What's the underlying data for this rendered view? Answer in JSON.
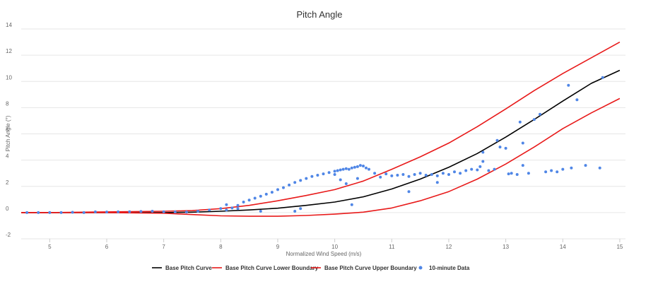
{
  "colors": {
    "base": "#000000",
    "boundary": "#e81a1a",
    "points": "#4f86e6",
    "grid": "#e6e6e6"
  },
  "chart_data": {
    "type": "line",
    "title": "Pitch Angle",
    "xlabel": "Normalized Wind Speed (m/s)",
    "ylabel": "Pitch Angle (°)",
    "xlim": [
      4.5,
      15.1
    ],
    "ylim": [
      -2,
      14
    ],
    "x_ticks": [
      5,
      6,
      7,
      8,
      9,
      10,
      11,
      12,
      13,
      14,
      15
    ],
    "y_ticks": [
      -2,
      0,
      2,
      4,
      6,
      8,
      10,
      12,
      14
    ],
    "grid": true,
    "legend_position": "bottom",
    "series": [
      {
        "name": "Base Pitch Curve",
        "kind": "line",
        "color": "#000000",
        "x": [
          4.5,
          5,
          6,
          7,
          7.5,
          8,
          8.5,
          9,
          9.5,
          10,
          10.5,
          11,
          11.5,
          12,
          12.5,
          13,
          13.5,
          14,
          14.5,
          15
        ],
        "y": [
          0,
          0,
          0,
          0,
          0.03,
          0.1,
          0.2,
          0.33,
          0.55,
          0.8,
          1.2,
          1.8,
          2.55,
          3.45,
          4.5,
          5.75,
          7.1,
          8.5,
          9.85,
          10.85
        ]
      },
      {
        "name": "Base Pitch Curve Lower Boundary",
        "kind": "line",
        "color": "#e81a1a",
        "x": [
          4.5,
          5,
          6,
          7,
          7.5,
          8,
          8.5,
          9,
          9.5,
          10,
          10.5,
          11,
          11.5,
          12,
          12.5,
          13,
          13.5,
          14,
          14.5,
          15
        ],
        "y": [
          0,
          0,
          0,
          -0.05,
          -0.15,
          -0.25,
          -0.28,
          -0.28,
          -0.22,
          -0.12,
          0.03,
          0.35,
          0.9,
          1.6,
          2.55,
          3.7,
          5.0,
          6.4,
          7.6,
          8.7
        ]
      },
      {
        "name": "Base Pitch Curve Upper Boundary",
        "kind": "line",
        "color": "#e81a1a",
        "x": [
          4.5,
          5,
          6,
          7,
          7.5,
          8,
          8.5,
          9,
          9.5,
          10,
          10.5,
          11,
          11.5,
          12,
          12.5,
          13,
          13.5,
          14,
          14.5,
          15
        ],
        "y": [
          0,
          0,
          0.05,
          0.1,
          0.15,
          0.3,
          0.55,
          0.9,
          1.3,
          1.75,
          2.4,
          3.3,
          4.25,
          5.3,
          6.55,
          7.9,
          9.3,
          10.6,
          11.8,
          13.0
        ]
      },
      {
        "name": "10-minute Data",
        "kind": "scatter",
        "color": "#4f86e6",
        "x": [
          4.6,
          4.8,
          5.0,
          5.2,
          5.4,
          5.6,
          5.8,
          6.0,
          6.2,
          6.4,
          6.6,
          6.8,
          7.0,
          7.2,
          7.4,
          7.6,
          7.8,
          8.0,
          8.1,
          8.2,
          8.3,
          8.4,
          8.5,
          8.6,
          8.7,
          8.8,
          8.9,
          9.0,
          9.1,
          9.2,
          9.3,
          9.4,
          9.5,
          9.6,
          9.7,
          9.8,
          9.9,
          10.0,
          10.05,
          10.1,
          10.15,
          10.2,
          10.25,
          10.3,
          10.35,
          10.4,
          10.45,
          10.5,
          10.55,
          10.6,
          10.7,
          10.8,
          10.9,
          11.0,
          11.1,
          11.2,
          11.3,
          11.4,
          11.5,
          11.6,
          11.7,
          11.8,
          11.9,
          12.0,
          12.1,
          12.2,
          12.3,
          12.4,
          12.5,
          12.55,
          12.6,
          12.7,
          12.8,
          12.85,
          12.9,
          13.0,
          13.05,
          13.1,
          13.2,
          13.25,
          13.3,
          13.4,
          13.5,
          13.6,
          13.7,
          13.8,
          13.9,
          14.0,
          14.1,
          14.15,
          14.25,
          14.4,
          14.65,
          14.7,
          10.0,
          10.1,
          10.2,
          9.3,
          9.4,
          8.7,
          10.4,
          8.1,
          8.3,
          10.3,
          11.3,
          11.8,
          12.6,
          13.3
        ],
        "y": [
          0,
          0,
          0,
          0,
          0.02,
          0,
          0.05,
          0.04,
          0.05,
          0.06,
          0.08,
          0.1,
          0.06,
          0.05,
          0.04,
          0.1,
          0.2,
          0.3,
          0.6,
          0.35,
          0.55,
          0.8,
          0.95,
          1.1,
          1.25,
          1.4,
          1.55,
          1.75,
          1.9,
          2.1,
          2.3,
          2.45,
          2.6,
          2.75,
          2.85,
          2.95,
          3.05,
          3.15,
          3.2,
          3.25,
          3.3,
          3.35,
          3.3,
          3.4,
          3.45,
          3.5,
          3.6,
          3.55,
          3.4,
          3.3,
          3.0,
          2.7,
          2.95,
          2.8,
          2.85,
          2.9,
          2.75,
          2.9,
          3.0,
          2.85,
          2.9,
          2.8,
          3.0,
          2.9,
          3.1,
          3.0,
          3.2,
          3.3,
          3.25,
          3.5,
          3.9,
          3.2,
          3.3,
          5.5,
          5.0,
          4.9,
          2.95,
          3.0,
          2.9,
          6.9,
          5.3,
          3.0,
          7.1,
          7.5,
          3.1,
          3.2,
          3.1,
          3.3,
          9.7,
          3.4,
          8.6,
          3.6,
          3.4,
          10.3,
          2.9,
          2.5,
          2.2,
          0.1,
          0.3,
          0.1,
          2.6,
          0.2,
          0.3,
          0.6,
          1.6,
          2.3,
          4.6,
          3.6
        ]
      }
    ]
  }
}
